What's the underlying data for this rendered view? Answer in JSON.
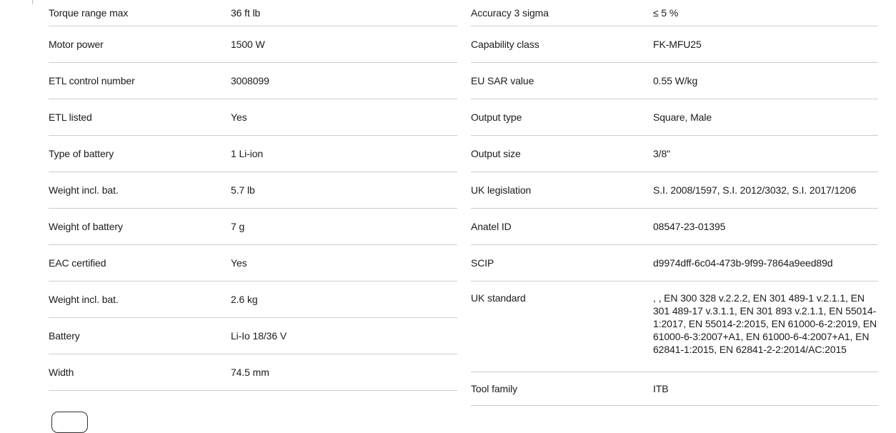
{
  "page": {
    "background_color": "#ffffff",
    "text_color": "#1b1b1b",
    "divider_color": "#cccccc"
  },
  "spec_tables": {
    "left": {
      "rows": [
        {
          "label": "Torque range max",
          "value": "36 ft lb"
        },
        {
          "label": "Motor power",
          "value": "1500 W"
        },
        {
          "label": "ETL control number",
          "value": "3008099"
        },
        {
          "label": "ETL listed",
          "value": "Yes"
        },
        {
          "label": "Type of battery",
          "value": "1 Li-ion"
        },
        {
          "label": "Weight incl. bat.",
          "value": "5.7 lb"
        },
        {
          "label": "Weight of battery",
          "value": "7 g"
        },
        {
          "label": "EAC certified",
          "value": "Yes"
        },
        {
          "label": "Weight incl. bat.",
          "value": "2.6 kg"
        },
        {
          "label": "Battery",
          "value": "Li-Io 18/36 V"
        },
        {
          "label": "Width",
          "value": "74.5 mm"
        }
      ]
    },
    "right": {
      "rows": [
        {
          "label": "Accuracy 3 sigma",
          "value": "≤ 5 %"
        },
        {
          "label": "Capability class",
          "value": "FK-MFU25"
        },
        {
          "label": "EU SAR value",
          "value": "0.55 W/kg"
        },
        {
          "label": "Output type",
          "value": "Square, Male"
        },
        {
          "label": "Output size",
          "value": "3/8\""
        },
        {
          "label": "UK legislation",
          "value": "S.I. 2008/1597, S.I. 2012/3032, S.I. 2017/1206"
        },
        {
          "label": "Anatel ID",
          "value": "08547-23-01395"
        },
        {
          "label": "SCIP",
          "value": "d9974dff-6c04-473b-9f99-7864a9eed89d"
        },
        {
          "label": "UK standard",
          "value": ", , EN 300 328 v.2.2.2, EN 301 489-1 v.2.1.1, EN 301 489-17 v.3.1.1, EN 301 893 v.2.1.1, EN 55014-1:2017, EN 55014-2:2015, EN 61000-6-2:2019, EN 61000-6-3:2007+A1, EN 61000-6-4:2007+A1, EN 62841-1:2015, EN 62841-2-2:2014/AC:2015"
        },
        {
          "label": "Tool family",
          "value": "ITB"
        }
      ]
    }
  },
  "footer": {
    "show_less_button_label": ""
  }
}
